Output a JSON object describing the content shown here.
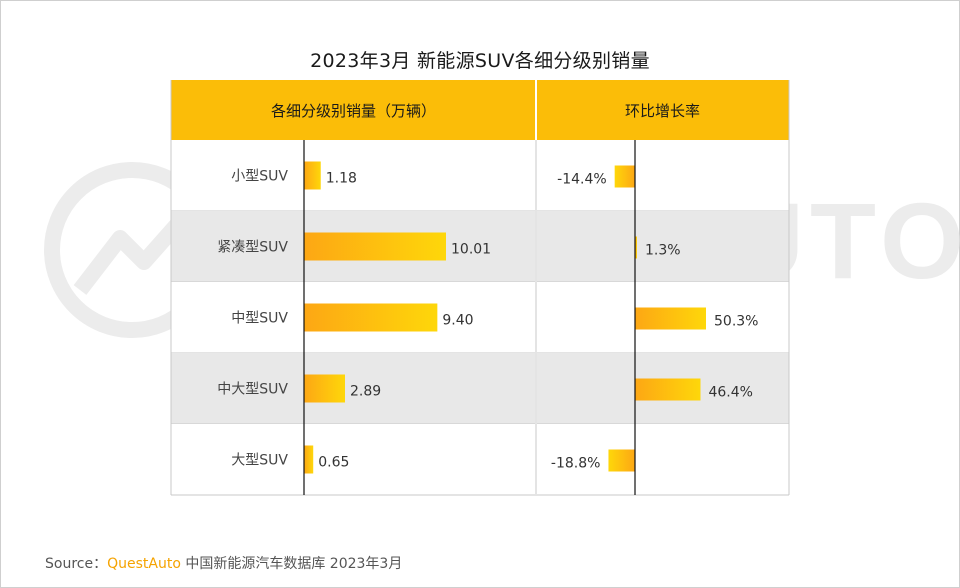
{
  "title": "2023年3月 新能源SUV各细分级别销量",
  "watermark": "QUESTAUTO",
  "chart_data": {
    "type": "bar",
    "orientation": "horizontal",
    "categories": [
      "小型SUV",
      "紧凑型SUV",
      "中型SUV",
      "中大型SUV",
      "大型SUV"
    ],
    "series": [
      {
        "name": "各细分级别销量（万辆）",
        "values": [
          1.18,
          10.01,
          9.4,
          2.89,
          0.65
        ],
        "labels": [
          "1.18",
          "10.01",
          "9.40",
          "2.89",
          "0.65"
        ]
      },
      {
        "name": "环比增长率",
        "values": [
          -14.4,
          1.3,
          50.3,
          46.4,
          -18.8
        ],
        "labels": [
          "-14.4%",
          "1.3%",
          "50.3%",
          "46.4%",
          "-18.8%"
        ]
      }
    ],
    "colors": {
      "header": "#fbbd08",
      "bar_start": "#fda714",
      "bar_end": "#fed70a",
      "row_alt": "#e8e8e8",
      "grid": "#c8c8c8"
    }
  },
  "source": {
    "prefix": "Source：",
    "brand": "QuestAuto",
    "text": " 中国新能源汽车数据库 2023年3月"
  }
}
